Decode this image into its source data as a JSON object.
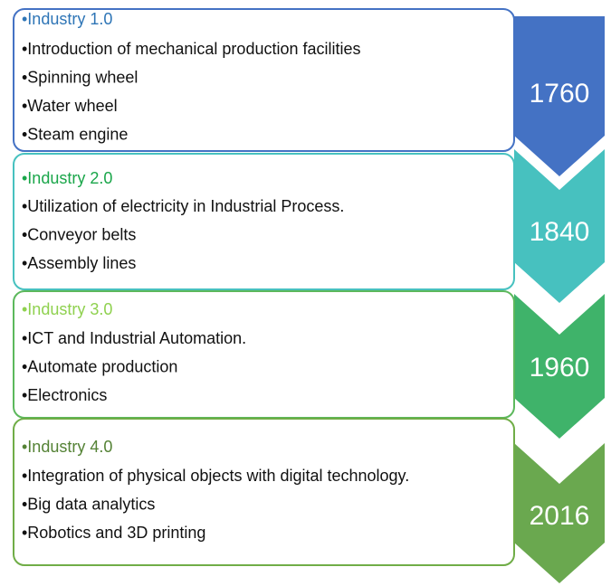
{
  "stages": [
    {
      "title": "•Industry 1.0",
      "year": "1760",
      "items": [
        "•Introduction of mechanical production facilities",
        "•Spinning wheel",
        "•Water wheel",
        "•Steam engine"
      ]
    },
    {
      "title": "•Industry 2.0",
      "year": "1840",
      "items": [
        "•Utilization of electricity in Industrial Process.",
        "•Conveyor belts",
        "•Assembly lines"
      ]
    },
    {
      "title": "•Industry 3.0",
      "year": "1960",
      "items": [
        "•ICT and Industrial Automation.",
        "•Automate production",
        "•Electronics"
      ]
    },
    {
      "title": "•Industry 4.0",
      "year": "2016",
      "items": [
        "•Integration of physical objects with digital technology.",
        "•Big data analytics",
        "•Robotics and 3D printing"
      ]
    }
  ]
}
